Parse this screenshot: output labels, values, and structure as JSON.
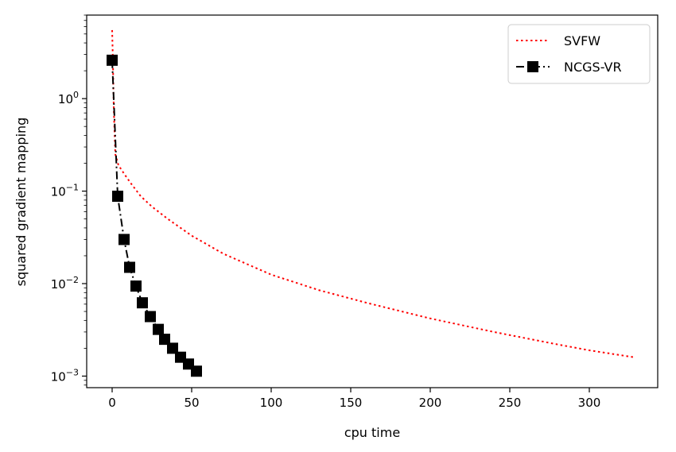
{
  "chart_data": {
    "type": "line",
    "xlabel": "cpu time",
    "ylabel": "squared gradient mapping",
    "xscale": "linear",
    "yscale": "log",
    "xlim": [
      -16,
      343
    ],
    "ylim": [
      0.00075,
      8
    ],
    "xticks": [
      {
        "value": 0,
        "label": "0"
      },
      {
        "value": 50,
        "label": "50"
      },
      {
        "value": 100,
        "label": "100"
      },
      {
        "value": 150,
        "label": "150"
      },
      {
        "value": 200,
        "label": "200"
      },
      {
        "value": 250,
        "label": "250"
      },
      {
        "value": 300,
        "label": "300"
      }
    ],
    "yticks": [
      {
        "value": 1,
        "base": "10",
        "exp": "0"
      },
      {
        "value": 0.1,
        "base": "10",
        "exp": "−1"
      },
      {
        "value": 0.01,
        "base": "10",
        "exp": "−2"
      },
      {
        "value": 0.001,
        "base": "10",
        "exp": "−3"
      }
    ],
    "grid": false,
    "legend_position": "top-right",
    "series": [
      {
        "name": "SVFW",
        "color": "#ff0000",
        "line_style": "dotted",
        "marker": "none",
        "x": [
          0,
          0.5,
          1,
          2,
          4,
          8,
          12,
          18,
          25,
          35,
          50,
          70,
          100,
          130,
          160,
          200,
          240,
          280,
          300,
          328
        ],
        "y": [
          5.5,
          2.5,
          0.8,
          0.25,
          0.19,
          0.15,
          0.12,
          0.088,
          0.068,
          0.05,
          0.033,
          0.021,
          0.0125,
          0.0085,
          0.0062,
          0.0042,
          0.003,
          0.0022,
          0.0019,
          0.0016
        ]
      },
      {
        "name": "NCGS-VR",
        "color": "#000000",
        "line_style": "dashdot",
        "marker": "square",
        "x": [
          0,
          3.5,
          7.5,
          11,
          15,
          19,
          24,
          29,
          33,
          38,
          43,
          48,
          53
        ],
        "y": [
          2.6,
          0.088,
          0.03,
          0.015,
          0.0094,
          0.0062,
          0.0044,
          0.0032,
          0.0025,
          0.002,
          0.0016,
          0.00135,
          0.00113
        ]
      }
    ]
  }
}
